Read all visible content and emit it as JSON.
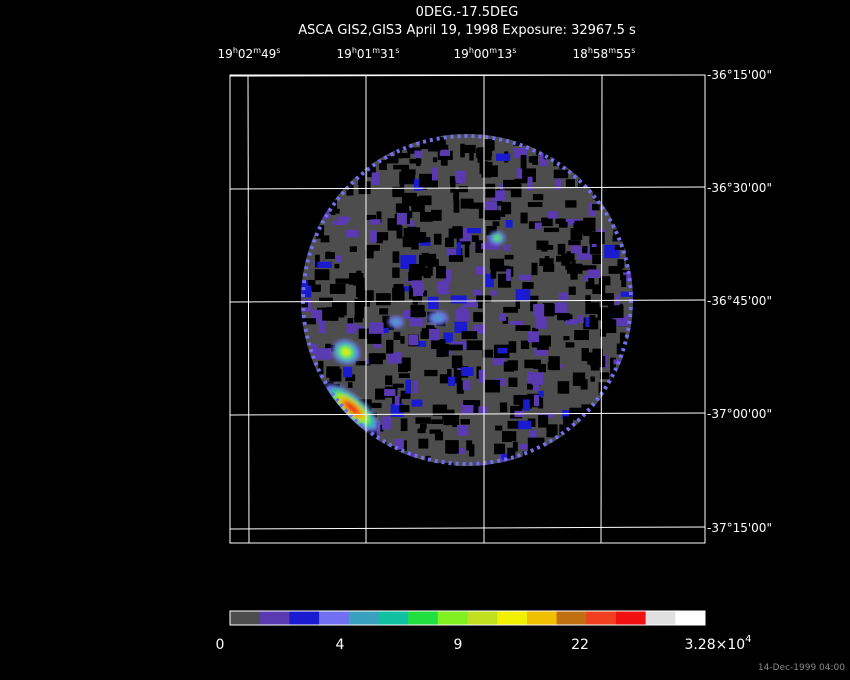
{
  "header": {
    "title": "0DEG.-17.5DEG",
    "subtitle": "ASCA GIS2,GIS3 April 19, 1998 Exposure: 32967.5 s"
  },
  "ra_labels": [
    [
      "19",
      "h",
      "02",
      "m",
      "49",
      "s"
    ],
    [
      "19",
      "h",
      "01",
      "m",
      "31",
      "s"
    ],
    [
      "19",
      "h",
      "00",
      "m",
      "13",
      "s"
    ],
    [
      "18",
      "h",
      "58",
      "m",
      "55",
      "s"
    ]
  ],
  "dec_labels": [
    "-36°15'00\"",
    "-36°30'00\"",
    "-36°45'00\"",
    "-37°00'00\"",
    "-37°15'00\""
  ],
  "colorbar": {
    "colors": [
      "#4d4d4d",
      "#5a3ab0",
      "#1a1ad0",
      "#7070f0",
      "#3aa0c0",
      "#10c0a0",
      "#20e040",
      "#80f020",
      "#c0e020",
      "#f0f000",
      "#f0c000",
      "#c07010",
      "#f04020",
      "#f01010",
      "#e0e0e0",
      "#ffffff"
    ],
    "labels": [
      [
        "0"
      ],
      [
        "4"
      ],
      [
        "9"
      ],
      [
        "22"
      ],
      [
        "3.28×10",
        "4"
      ]
    ]
  },
  "timestamp": "14-Dec-1999 04:00"
}
